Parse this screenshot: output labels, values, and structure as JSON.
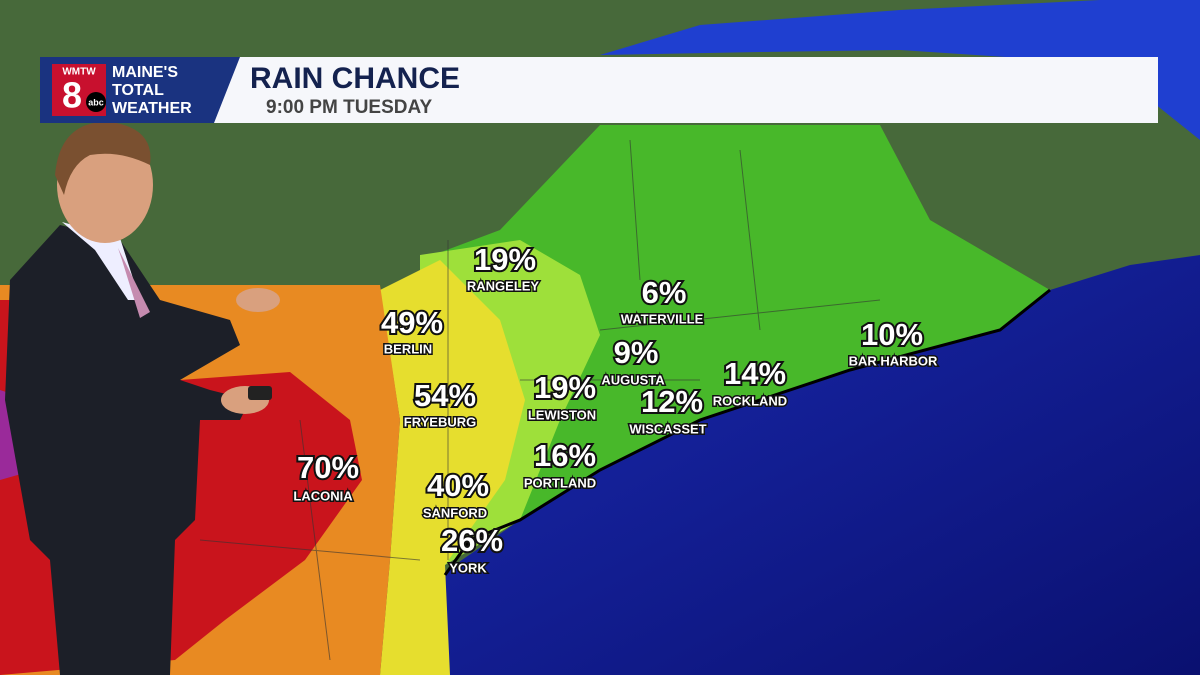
{
  "header": {
    "logo": {
      "station": "WMTW",
      "channel": "8",
      "network": "abc",
      "brand": [
        "MAINE'S",
        "TOTAL",
        "WEATHER"
      ]
    },
    "title": "RAIN CHANCE",
    "subtitle": "9:00 PM TUESDAY"
  },
  "cities": [
    {
      "name": "RANGELEY",
      "chance": "19%"
    },
    {
      "name": "WATERVILLE",
      "chance": "6%"
    },
    {
      "name": "BERLIN",
      "chance": "49%"
    },
    {
      "name": "BAR HARBOR",
      "chance": "10%"
    },
    {
      "name": "AUGUSTA",
      "chance": "9%"
    },
    {
      "name": "FRYEBURG",
      "chance": "54%"
    },
    {
      "name": "LEWISTON",
      "chance": "19%"
    },
    {
      "name": "ROCKLAND",
      "chance": "14%"
    },
    {
      "name": "WISCASSET",
      "chance": "12%"
    },
    {
      "name": "LACONIA",
      "chance": "70%"
    },
    {
      "name": "PORTLAND",
      "chance": "16%"
    },
    {
      "name": "SANFORD",
      "chance": "40%"
    },
    {
      "name": "YORK",
      "chance": "26%"
    }
  ]
}
